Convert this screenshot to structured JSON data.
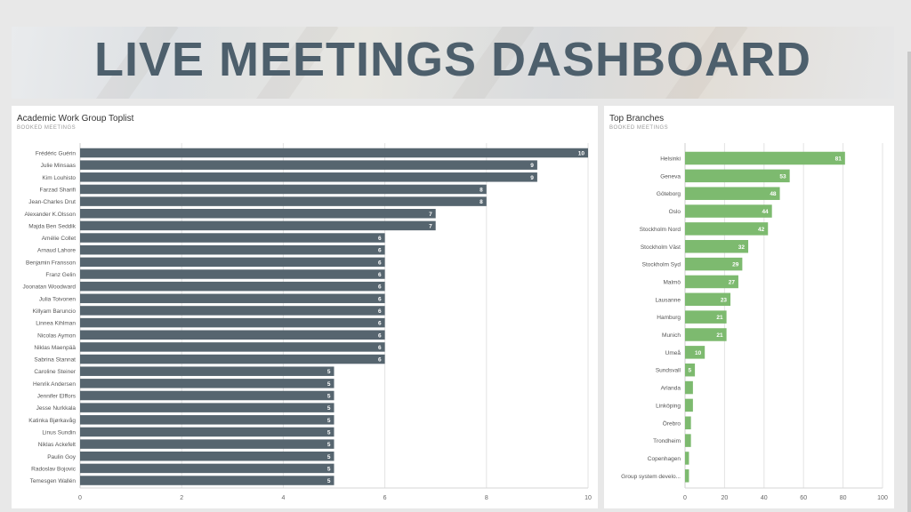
{
  "dashboard": {
    "title": "LIVE MEETINGS DASHBOARD"
  },
  "colors": {
    "left_bar": "#56656f",
    "right_bar": "#7dba6f",
    "banner_text": "#4d5f6c"
  },
  "chart_data": [
    {
      "type": "bar",
      "orientation": "horizontal",
      "title": "Academic Work Group Toplist",
      "subtitle": "BOOKED MEETINGS",
      "categories": [
        "Frédéric Guérin",
        "Julie Minsaas",
        "Kim Louhisto",
        "Farzad Sharifi",
        "Jean-Charles Drut",
        "Alexander K.Olsson",
        "Majda Ben Seddik",
        "Amélie Collet",
        "Arnaud Lahore",
        "Benjamin Fransson",
        "Franz Gelin",
        "Joonatan Woodward",
        "Julia Toivonen",
        "Killyam Baruncio",
        "Linnea Kihlman",
        "Nicolas Aymon",
        "Niklas Maenpää",
        "Sabrina Stannat",
        "Caroline Steiner",
        "Henrik Andersen",
        "Jennifer Elffors",
        "Jesse Nurkkala",
        "Katinka Bjørkavåg",
        "Linus Sundin",
        "Niklas Ackefelt",
        "Paulin Goy",
        "Radoslav Bojovic",
        "Temesgen Wallén"
      ],
      "values": [
        10,
        9,
        9,
        8,
        8,
        7,
        7,
        6,
        6,
        6,
        6,
        6,
        6,
        6,
        6,
        6,
        6,
        6,
        5,
        5,
        5,
        5,
        5,
        5,
        5,
        5,
        5,
        5
      ],
      "labels": [
        "10",
        "9",
        "9",
        "8",
        "8",
        "7",
        "7",
        "6",
        "6",
        "6",
        "6",
        "6",
        "6",
        "6",
        "6",
        "6",
        "6",
        "6",
        "5",
        "5",
        "5",
        "5",
        "5",
        "5",
        "5",
        "5",
        "5",
        "5"
      ],
      "xlim": [
        0,
        10
      ],
      "ticks": [
        "0",
        "2",
        "4",
        "6",
        "8",
        "10"
      ],
      "tick_values": [
        0,
        2,
        4,
        6,
        8,
        10
      ],
      "grid": true
    },
    {
      "type": "bar",
      "orientation": "horizontal",
      "title": "Top Branches",
      "subtitle": "BOOKED MEETINGS",
      "categories": [
        "Helsinki",
        "Geneva",
        "Göteborg",
        "Oslo",
        "Stockholm Nord",
        "Stockholm Väst",
        "Stockholm Syd",
        "Malmö",
        "Lausanne",
        "Hamburg",
        "Munich",
        "Umeå",
        "Sundsvall",
        "Arlanda",
        "Linköping",
        "Örebro",
        "Trondheim",
        "Copenhagen",
        "Group system develo..."
      ],
      "values": [
        81,
        53,
        48,
        44,
        42,
        32,
        29,
        27,
        23,
        21,
        21,
        10,
        5,
        4,
        4,
        3,
        3,
        2,
        2
      ],
      "labels": [
        "81",
        "53",
        "48",
        "44",
        "42",
        "32",
        "29",
        "27",
        "23",
        "21",
        "21",
        "10",
        "5",
        "",
        "",
        "",
        "",
        "",
        ""
      ],
      "xlim": [
        0,
        100
      ],
      "ticks": [
        "0",
        "20",
        "40",
        "60",
        "80",
        "100"
      ],
      "tick_values": [
        0,
        20,
        40,
        60,
        80,
        100
      ],
      "grid": true
    }
  ]
}
